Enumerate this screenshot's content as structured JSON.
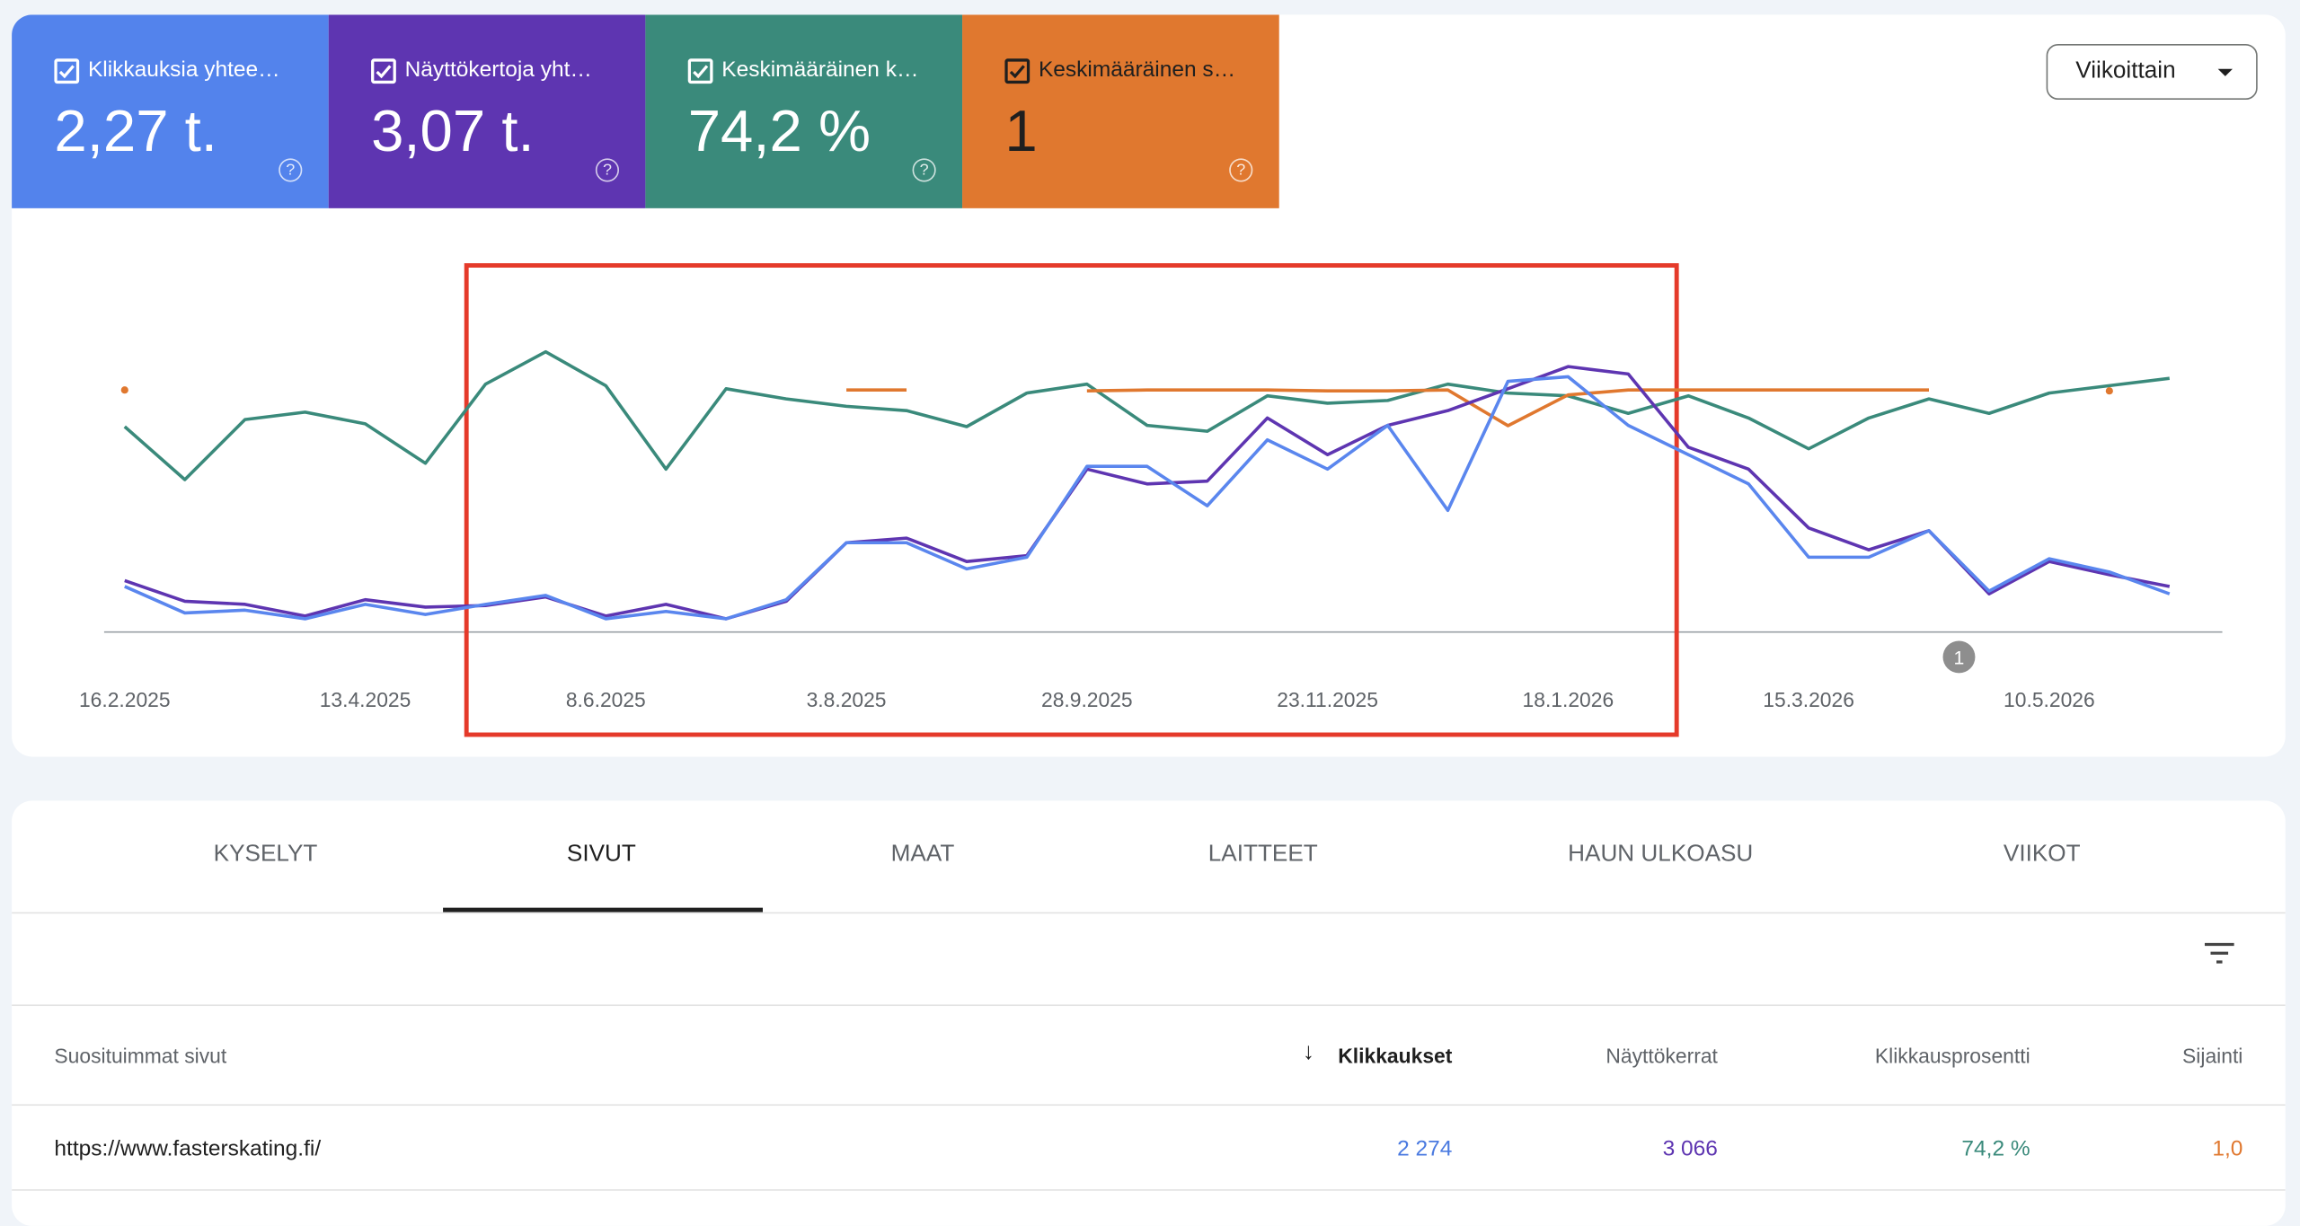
{
  "metrics": [
    {
      "label": "Klikkauksia yhtee…",
      "value": "2,27 t.",
      "color": "#5383ec"
    },
    {
      "label": "Näyttökertoja yht…",
      "value": "3,07 t.",
      "color": "#5e35b1"
    },
    {
      "label": "Keskimääräinen k…",
      "value": "74,2 %",
      "color": "#3a8a7b"
    },
    {
      "label": "Keskimääräinen s…",
      "value": "1",
      "color": "#e0782f"
    }
  ],
  "dropdown": "Viikoittain",
  "chart_data": {
    "type": "line",
    "ylim": [
      0,
      100
    ],
    "xticks": [
      {
        "value": 0,
        "label": "16.2.2025"
      },
      {
        "value": 4,
        "label": "13.4.2025"
      },
      {
        "value": 8,
        "label": "8.6.2025"
      },
      {
        "value": 12,
        "label": "3.8.2025"
      },
      {
        "value": 16,
        "label": "28.9.2025"
      },
      {
        "value": 20,
        "label": "23.11.2025"
      },
      {
        "value": 24,
        "label": "18.1.2026"
      },
      {
        "value": 28,
        "label": "15.3.2026"
      },
      {
        "value": 32,
        "label": "10.5.2026"
      }
    ],
    "annotation": {
      "x": 30.5,
      "text": "1"
    },
    "series": [
      {
        "color": "#3a8a7b",
        "values": [
          66.7,
          49.5,
          69,
          71.4,
          67.6,
          54.8,
          80.5,
          91,
          80,
          52.9,
          79,
          75.7,
          73.3,
          71.9,
          66.7,
          77.6,
          80.5,
          67.1,
          65.2,
          76.7,
          74.3,
          75.2,
          80.5,
          77.6,
          76.7,
          71,
          76.7,
          69.5,
          59.5,
          69.5,
          75.7,
          71,
          77.6,
          80,
          82.4
        ]
      },
      {
        "color": "#e0782f",
        "values": [
          78.6,
          null,
          null,
          null,
          null,
          null,
          null,
          null,
          null,
          null,
          null,
          null,
          78.6,
          78.6,
          null,
          null,
          78.3,
          78.6,
          78.6,
          78.6,
          78.3,
          78.3,
          78.6,
          67,
          77,
          78.6,
          78.6,
          78.6,
          78.6,
          78.6,
          78.6,
          null,
          null,
          78.3,
          null
        ]
      },
      {
        "color": "#5e35b1",
        "values": [
          16.7,
          10,
          9,
          5.2,
          10.5,
          8.1,
          8.6,
          11.4,
          5.2,
          9,
          4.3,
          10,
          29,
          30.5,
          22.9,
          24.8,
          52.9,
          48.1,
          49,
          69.5,
          57.6,
          67.1,
          71.9,
          79,
          86.2,
          83.8,
          60,
          52.9,
          33.8,
          26.7,
          32.9,
          12.4,
          22.9,
          18.6,
          14.8
        ]
      },
      {
        "color": "#5a86ee",
        "values": [
          14.8,
          6.2,
          7.1,
          4.3,
          9,
          5.7,
          9,
          11.9,
          4.3,
          6.7,
          4.3,
          10.5,
          29,
          29,
          20.5,
          24.3,
          53.8,
          53.8,
          41,
          62.4,
          52.9,
          67.1,
          39.5,
          81.4,
          82.9,
          67.1,
          57.6,
          48.1,
          24.3,
          24.3,
          32.9,
          13.3,
          23.8,
          19.5,
          12.4
        ]
      }
    ]
  },
  "tabs": [
    "KYSELYT",
    "SIVUT",
    "MAAT",
    "LAITTEET",
    "HAUN ULKOASU",
    "VIIKOT"
  ],
  "table": {
    "headers": [
      "Suosituimmat sivut",
      "Klikkaukset",
      "Näyttökerrat",
      "Klikkausprosentti",
      "Sijainti"
    ],
    "rows": [
      [
        "https://www.fasterskating.fi/",
        "2 274",
        "3 066",
        "74,2 %",
        "1,0"
      ]
    ]
  }
}
